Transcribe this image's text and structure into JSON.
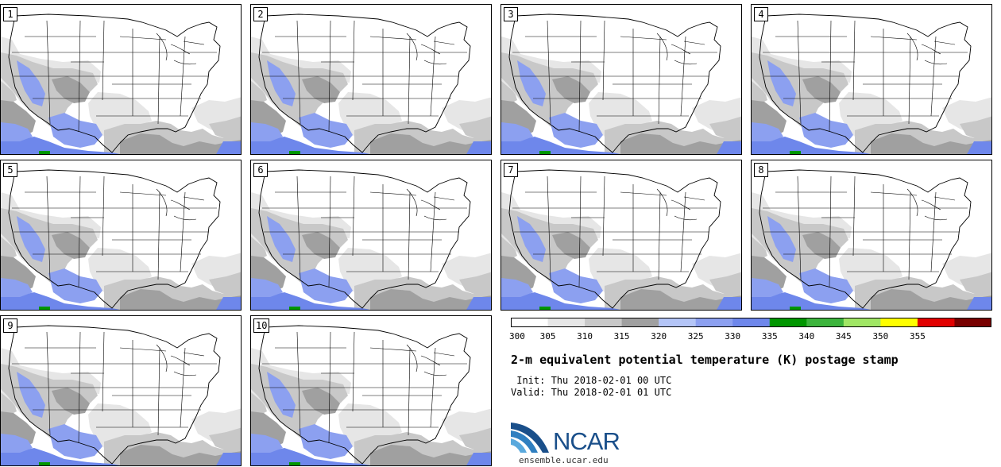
{
  "title": "2-m equivalent potential temperature (K) postage stamp",
  "init_line": " Init: Thu 2018-02-01 00 UTC",
  "valid_line": "Valid: Thu 2018-02-01 01 UTC",
  "logo": {
    "name": "NCAR",
    "url": "ensemble.ucar.edu"
  },
  "members": [
    "1",
    "2",
    "3",
    "4",
    "5",
    "6",
    "7",
    "8",
    "9",
    "10"
  ],
  "colorbar": {
    "ticks": [
      "300",
      "305",
      "310",
      "315",
      "320",
      "325",
      "330",
      "335",
      "340",
      "345",
      "350",
      "355"
    ],
    "colors": [
      "#ffffff",
      "#e6e6e6",
      "#c8c8c8",
      "#a0a0a0",
      "#b4c5f7",
      "#8ca0f0",
      "#6e87eb",
      "#009600",
      "#3cb43c",
      "#a0e664",
      "#ffff00",
      "#e10000",
      "#780000"
    ]
  }
}
